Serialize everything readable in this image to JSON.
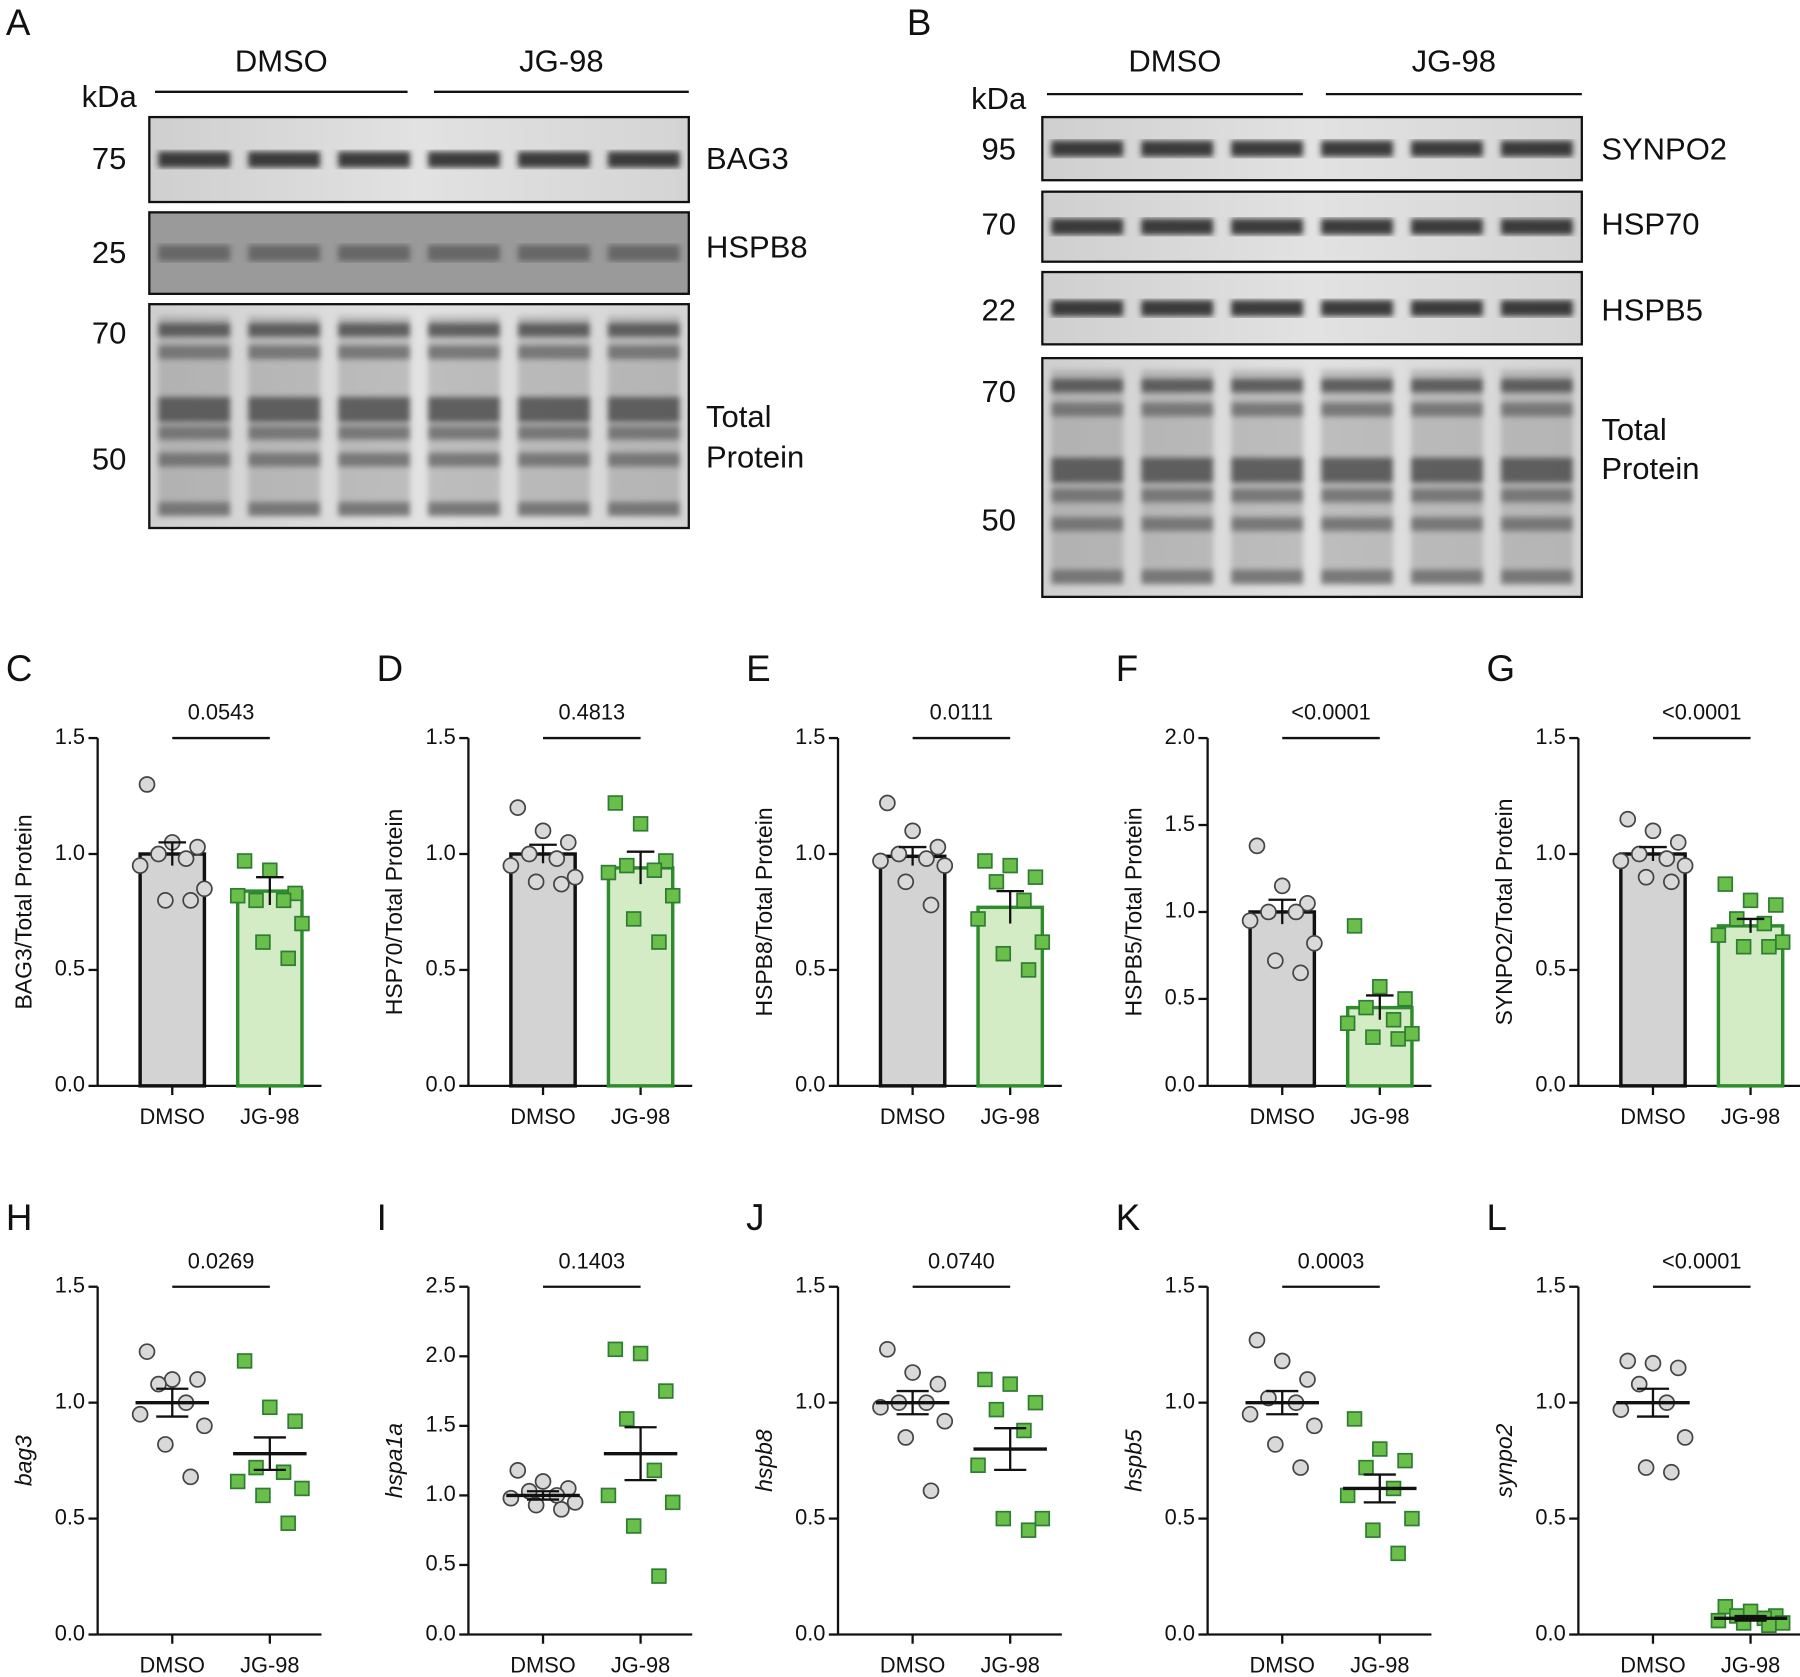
{
  "blots": [
    {
      "panel": "A",
      "kDa": "kDa",
      "groups": [
        "DMSO",
        "JG-98"
      ],
      "rows": [
        {
          "markers": [
            "75"
          ],
          "label_lines": [
            "BAG3"
          ]
        },
        {
          "markers": [
            "25"
          ],
          "label_lines": [
            "HSPB8"
          ]
        },
        {
          "markers": [
            "70",
            "50"
          ],
          "label_lines": [
            "Total",
            "Protein"
          ]
        }
      ]
    },
    {
      "panel": "B",
      "kDa": "kDa",
      "groups": [
        "DMSO",
        "JG-98"
      ],
      "rows": [
        {
          "markers": [
            "95"
          ],
          "label_lines": [
            "SYNPO2"
          ]
        },
        {
          "markers": [
            "70"
          ],
          "label_lines": [
            "HSP70"
          ]
        },
        {
          "markers": [
            "22"
          ],
          "label_lines": [
            "HSPB5"
          ]
        },
        {
          "markers": [
            "70",
            "50"
          ],
          "label_lines": [
            "Total",
            "Protein"
          ]
        }
      ]
    }
  ],
  "chart_data": [
    {
      "type": "bar",
      "panel": "C",
      "ylabel": "BAG3/Total Protein",
      "italic": false,
      "pvalue": "0.0543",
      "categories": [
        "DMSO",
        "JG-98"
      ],
      "ylim": [
        0,
        1.5
      ],
      "yticks": [
        {
          "value": 0,
          "label": "0.0"
        },
        0.5,
        {
          "value": 1,
          "label": "1.0"
        },
        1.5
      ],
      "groups": [
        {
          "fill": "#d3d3d3",
          "stroke": "#111111",
          "marker": "circle",
          "marker_fill": "#d9d9d9",
          "marker_stroke": "#444444",
          "mean": 1.0,
          "sem": 0.05,
          "points": [
            1.3,
            1.05,
            1.03,
            1.0,
            0.98,
            0.95,
            0.85,
            0.8,
            0.8
          ]
        },
        {
          "fill": "#d4ecc6",
          "stroke": "#2e8b2e",
          "marker": "square",
          "marker_fill": "#6abf4b",
          "marker_stroke": "#2e7d32",
          "mean": 0.84,
          "sem": 0.06,
          "points": [
            0.97,
            0.93,
            0.83,
            0.8,
            0.8,
            0.82,
            0.7,
            0.62,
            0.55
          ]
        }
      ]
    },
    {
      "type": "bar",
      "panel": "D",
      "ylabel": "HSP70/Total Protein",
      "italic": false,
      "pvalue": "0.4813",
      "categories": [
        "DMSO",
        "JG-98"
      ],
      "ylim": [
        0,
        1.5
      ],
      "yticks": [
        {
          "value": 0,
          "label": "0.0"
        },
        0.5,
        {
          "value": 1,
          "label": "1.0"
        },
        1.5
      ],
      "groups": [
        {
          "fill": "#d3d3d3",
          "stroke": "#111111",
          "marker": "circle",
          "marker_fill": "#d9d9d9",
          "marker_stroke": "#444444",
          "mean": 1.0,
          "sem": 0.04,
          "points": [
            1.2,
            1.1,
            1.05,
            1.0,
            0.98,
            0.95,
            0.9,
            0.88,
            0.87
          ]
        },
        {
          "fill": "#d4ecc6",
          "stroke": "#2e8b2e",
          "marker": "square",
          "marker_fill": "#6abf4b",
          "marker_stroke": "#2e7d32",
          "mean": 0.94,
          "sem": 0.07,
          "points": [
            1.22,
            1.13,
            0.97,
            0.95,
            0.93,
            0.92,
            0.82,
            0.72,
            0.62
          ]
        }
      ]
    },
    {
      "type": "bar",
      "panel": "E",
      "ylabel": "HSPB8/Total Protein",
      "italic": false,
      "pvalue": "0.0111",
      "categories": [
        "DMSO",
        "JG-98"
      ],
      "ylim": [
        0,
        1.5
      ],
      "yticks": [
        {
          "value": 0,
          "label": "0.0"
        },
        0.5,
        {
          "value": 1,
          "label": "1.0"
        },
        1.5
      ],
      "groups": [
        {
          "fill": "#d3d3d3",
          "stroke": "#111111",
          "marker": "circle",
          "marker_fill": "#d9d9d9",
          "marker_stroke": "#444444",
          "mean": 0.99,
          "sem": 0.04,
          "points": [
            1.22,
            1.1,
            1.03,
            1.0,
            0.98,
            0.97,
            0.95,
            0.88,
            0.78
          ]
        },
        {
          "fill": "#d4ecc6",
          "stroke": "#2e8b2e",
          "marker": "square",
          "marker_fill": "#6abf4b",
          "marker_stroke": "#2e7d32",
          "mean": 0.77,
          "sem": 0.07,
          "points": [
            0.97,
            0.95,
            0.9,
            0.88,
            0.8,
            0.72,
            0.62,
            0.57,
            0.5
          ]
        }
      ]
    },
    {
      "type": "bar",
      "panel": "F",
      "ylabel": "HSPB5/Total Protein",
      "italic": false,
      "pvalue": "<0.0001",
      "categories": [
        "DMSO",
        "JG-98"
      ],
      "ylim": [
        0,
        2
      ],
      "yticks": [
        {
          "value": 0,
          "label": "0.0"
        },
        0.5,
        {
          "value": 1,
          "label": "1.0"
        },
        1.5,
        {
          "value": 2,
          "label": "2.0"
        }
      ],
      "groups": [
        {
          "fill": "#d3d3d3",
          "stroke": "#111111",
          "marker": "circle",
          "marker_fill": "#d9d9d9",
          "marker_stroke": "#444444",
          "mean": 1.0,
          "sem": 0.07,
          "points": [
            1.38,
            1.15,
            1.05,
            1.0,
            1.0,
            0.95,
            0.82,
            0.72,
            0.65
          ]
        },
        {
          "fill": "#d4ecc6",
          "stroke": "#2e8b2e",
          "marker": "square",
          "marker_fill": "#6abf4b",
          "marker_stroke": "#2e7d32",
          "mean": 0.45,
          "sem": 0.07,
          "points": [
            0.92,
            0.57,
            0.5,
            0.45,
            0.38,
            0.36,
            0.3,
            0.28,
            0.27
          ]
        }
      ]
    },
    {
      "type": "bar",
      "panel": "G",
      "ylabel": "SYNPO2/Total Protein",
      "italic": false,
      "pvalue": "<0.0001",
      "categories": [
        "DMSO",
        "JG-98"
      ],
      "ylim": [
        0,
        1.5
      ],
      "yticks": [
        {
          "value": 0,
          "label": "0.0"
        },
        0.5,
        {
          "value": 1,
          "label": "1.0"
        },
        1.5
      ],
      "groups": [
        {
          "fill": "#d3d3d3",
          "stroke": "#111111",
          "marker": "circle",
          "marker_fill": "#d9d9d9",
          "marker_stroke": "#444444",
          "mean": 1.0,
          "sem": 0.03,
          "points": [
            1.15,
            1.1,
            1.05,
            1.0,
            0.98,
            0.97,
            0.95,
            0.9,
            0.88
          ]
        },
        {
          "fill": "#d4ecc6",
          "stroke": "#2e8b2e",
          "marker": "square",
          "marker_fill": "#6abf4b",
          "marker_stroke": "#2e7d32",
          "mean": 0.69,
          "sem": 0.03,
          "points": [
            0.87,
            0.8,
            0.78,
            0.72,
            0.7,
            0.65,
            0.62,
            0.6,
            0.6
          ]
        }
      ]
    },
    {
      "type": "dot",
      "panel": "H",
      "ylabel": "bag3",
      "italic": true,
      "pvalue": "0.0269",
      "categories": [
        "DMSO",
        "JG-98"
      ],
      "ylim": [
        0,
        1.5
      ],
      "yticks": [
        {
          "value": 0,
          "label": "0.0"
        },
        0.5,
        {
          "value": 1,
          "label": "1.0"
        },
        1.5
      ],
      "groups": [
        {
          "stroke": "#111111",
          "marker": "circle",
          "marker_fill": "#d9d9d9",
          "marker_stroke": "#444444",
          "mean": 1.0,
          "sem": 0.06,
          "points": [
            1.22,
            1.1,
            1.1,
            1.08,
            1.0,
            0.95,
            0.9,
            0.82,
            0.68
          ]
        },
        {
          "stroke": "#111111",
          "marker": "square",
          "marker_fill": "#6abf4b",
          "marker_stroke": "#2e7d32",
          "mean": 0.78,
          "sem": 0.07,
          "points": [
            1.18,
            0.98,
            0.92,
            0.72,
            0.7,
            0.66,
            0.63,
            0.6,
            0.48
          ]
        }
      ]
    },
    {
      "type": "dot",
      "panel": "I",
      "ylabel": "hspa1a",
      "italic": true,
      "pvalue": "0.1403",
      "categories": [
        "DMSO",
        "JG-98"
      ],
      "ylim": [
        0,
        2.5
      ],
      "yticks": [
        {
          "value": 0,
          "label": "0.0"
        },
        0.5,
        {
          "value": 1,
          "label": "1.0"
        },
        1.5,
        {
          "value": 2,
          "label": "2.0"
        },
        2.5
      ],
      "groups": [
        {
          "stroke": "#111111",
          "marker": "circle",
          "marker_fill": "#d9d9d9",
          "marker_stroke": "#444444",
          "mean": 1.0,
          "sem": 0.03,
          "points": [
            1.18,
            1.1,
            1.05,
            1.03,
            1.0,
            0.98,
            0.95,
            0.93,
            0.9
          ]
        },
        {
          "stroke": "#111111",
          "marker": "square",
          "marker_fill": "#6abf4b",
          "marker_stroke": "#2e7d32",
          "mean": 1.3,
          "sem": 0.19,
          "points": [
            2.05,
            2.02,
            1.75,
            1.55,
            1.18,
            1.0,
            0.95,
            0.78,
            0.42
          ]
        }
      ]
    },
    {
      "type": "dot",
      "panel": "J",
      "ylabel": "hspb8",
      "italic": true,
      "pvalue": "0.0740",
      "categories": [
        "DMSO",
        "JG-98"
      ],
      "ylim": [
        0,
        1.5
      ],
      "yticks": [
        {
          "value": 0,
          "label": "0.0"
        },
        0.5,
        {
          "value": 1,
          "label": "1.0"
        },
        1.5
      ],
      "groups": [
        {
          "stroke": "#111111",
          "marker": "circle",
          "marker_fill": "#d9d9d9",
          "marker_stroke": "#444444",
          "mean": 1.0,
          "sem": 0.05,
          "points": [
            1.23,
            1.13,
            1.08,
            1.0,
            1.0,
            0.98,
            0.92,
            0.85,
            0.62
          ]
        },
        {
          "stroke": "#111111",
          "marker": "square",
          "marker_fill": "#6abf4b",
          "marker_stroke": "#2e7d32",
          "mean": 0.8,
          "sem": 0.09,
          "points": [
            1.1,
            1.08,
            1.0,
            0.97,
            0.88,
            0.73,
            0.5,
            0.5,
            0.45
          ]
        }
      ]
    },
    {
      "type": "dot",
      "panel": "K",
      "ylabel": "hspb5",
      "italic": true,
      "pvalue": "0.0003",
      "categories": [
        "DMSO",
        "JG-98"
      ],
      "ylim": [
        0,
        1.5
      ],
      "yticks": [
        {
          "value": 0,
          "label": "0.0"
        },
        0.5,
        {
          "value": 1,
          "label": "1.0"
        },
        1.5
      ],
      "groups": [
        {
          "stroke": "#111111",
          "marker": "circle",
          "marker_fill": "#d9d9d9",
          "marker_stroke": "#444444",
          "mean": 1.0,
          "sem": 0.05,
          "points": [
            1.27,
            1.18,
            1.1,
            1.02,
            1.0,
            0.95,
            0.9,
            0.82,
            0.72
          ]
        },
        {
          "stroke": "#111111",
          "marker": "square",
          "marker_fill": "#6abf4b",
          "marker_stroke": "#2e7d32",
          "mean": 0.63,
          "sem": 0.06,
          "points": [
            0.93,
            0.8,
            0.75,
            0.72,
            0.63,
            0.6,
            0.5,
            0.45,
            0.35
          ]
        }
      ]
    },
    {
      "type": "dot",
      "panel": "L",
      "ylabel": "synpo2",
      "italic": true,
      "pvalue": "<0.0001",
      "categories": [
        "DMSO",
        "JG-98"
      ],
      "ylim": [
        0,
        1.5
      ],
      "yticks": [
        {
          "value": 0,
          "label": "0.0"
        },
        0.5,
        {
          "value": 1,
          "label": "1.0"
        },
        1.5
      ],
      "groups": [
        {
          "stroke": "#111111",
          "marker": "circle",
          "marker_fill": "#d9d9d9",
          "marker_stroke": "#444444",
          "mean": 1.0,
          "sem": 0.06,
          "points": [
            1.18,
            1.17,
            1.15,
            1.08,
            1.0,
            0.97,
            0.85,
            0.72,
            0.7
          ]
        },
        {
          "stroke": "#111111",
          "marker": "square",
          "marker_fill": "#6abf4b",
          "marker_stroke": "#2e7d32",
          "mean": 0.07,
          "sem": 0.01,
          "points": [
            0.12,
            0.1,
            0.08,
            0.08,
            0.07,
            0.06,
            0.05,
            0.05,
            0.04
          ]
        }
      ]
    }
  ]
}
